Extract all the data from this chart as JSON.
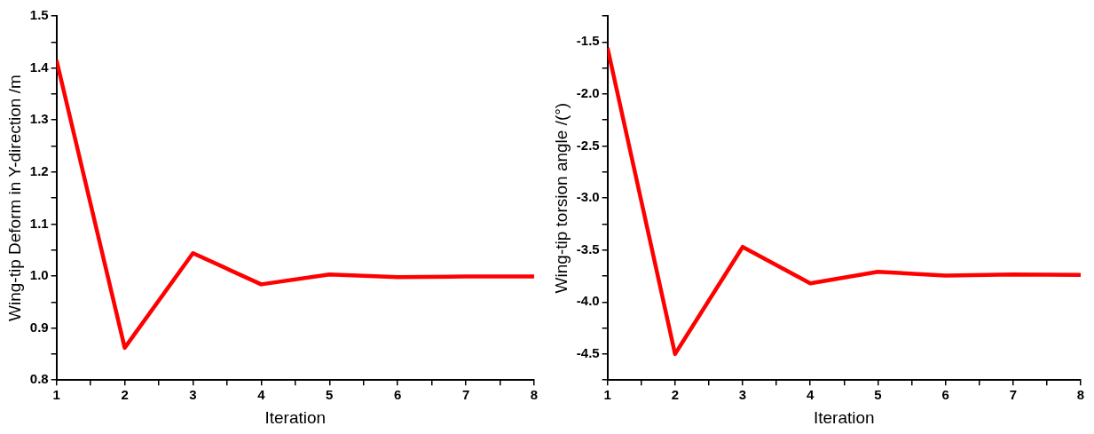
{
  "chart_data": [
    {
      "type": "line",
      "xlabel": "Iteration",
      "ylabel": "Wing-tip Deform in Y-direction /m",
      "x": [
        1,
        2,
        3,
        4,
        5,
        6,
        7,
        8
      ],
      "series": [
        {
          "color": "#ff0000",
          "values": [
            1.415,
            0.862,
            1.044,
            0.984,
            1.003,
            0.998,
            0.999,
            0.999
          ]
        }
      ],
      "xlim": [
        1,
        8
      ],
      "xticks": [
        1,
        {
          "value": 1.5,
          "label": null
        },
        2,
        {
          "value": 2.5,
          "label": null
        },
        3,
        {
          "value": 3.5,
          "label": null
        },
        4,
        {
          "value": 4.5,
          "label": null
        },
        5,
        {
          "value": 5.5,
          "label": null
        },
        6,
        {
          "value": 6.5,
          "label": null
        },
        7,
        {
          "value": 7.5,
          "label": null
        },
        8
      ],
      "ylim": [
        0.8,
        1.5
      ],
      "yticks": [
        {
          "value": 0.8,
          "label": "0.8"
        },
        {
          "value": 0.85,
          "label": null
        },
        {
          "value": 0.9,
          "label": "0.9"
        },
        {
          "value": 0.95,
          "label": null
        },
        {
          "value": 1.0,
          "label": "1.0"
        },
        {
          "value": 1.05,
          "label": null
        },
        {
          "value": 1.1,
          "label": "1.1"
        },
        {
          "value": 1.15,
          "label": null
        },
        {
          "value": 1.2,
          "label": "1.2"
        },
        {
          "value": 1.25,
          "label": null
        },
        {
          "value": 1.3,
          "label": "1.3"
        },
        {
          "value": 1.35,
          "label": null
        },
        {
          "value": 1.4,
          "label": "1.4"
        },
        {
          "value": 1.45,
          "label": null
        },
        {
          "value": 1.5,
          "label": "1.5"
        }
      ],
      "grid": false,
      "legend": false,
      "marker": "none",
      "line_style": "solid"
    },
    {
      "type": "line",
      "xlabel": "Iteration",
      "ylabel": "Wing-tip torsion angle /(°)",
      "x": [
        1,
        2,
        3,
        4,
        5,
        6,
        7,
        8
      ],
      "series": [
        {
          "color": "#ff0000",
          "values": [
            -1.555,
            -4.5,
            -3.47,
            -3.82,
            -3.71,
            -3.745,
            -3.735,
            -3.74
          ]
        }
      ],
      "xlim": [
        1,
        8
      ],
      "xticks": [
        1,
        {
          "value": 1.5,
          "label": null
        },
        2,
        {
          "value": 2.5,
          "label": null
        },
        3,
        {
          "value": 3.5,
          "label": null
        },
        4,
        {
          "value": 4.5,
          "label": null
        },
        5,
        {
          "value": 5.5,
          "label": null
        },
        6,
        {
          "value": 6.5,
          "label": null
        },
        7,
        {
          "value": 7.5,
          "label": null
        },
        8
      ],
      "ylim": [
        -4.75,
        -1.25
      ],
      "yticks": [
        {
          "value": -4.75,
          "label": null
        },
        -4.5,
        {
          "value": -4.25,
          "label": null
        },
        {
          "value": -4.0,
          "label": "-4.0"
        },
        {
          "value": -3.75,
          "label": null
        },
        -3.5,
        {
          "value": -3.25,
          "label": null
        },
        {
          "value": -3.0,
          "label": "-3.0"
        },
        {
          "value": -2.75,
          "label": null
        },
        -2.5,
        {
          "value": -2.25,
          "label": null
        },
        {
          "value": -2.0,
          "label": "-2.0"
        },
        {
          "value": -1.75,
          "label": null
        },
        -1.5,
        {
          "value": -1.25,
          "label": null
        }
      ],
      "grid": false,
      "legend": false,
      "marker": "none",
      "line_style": "solid"
    }
  ]
}
